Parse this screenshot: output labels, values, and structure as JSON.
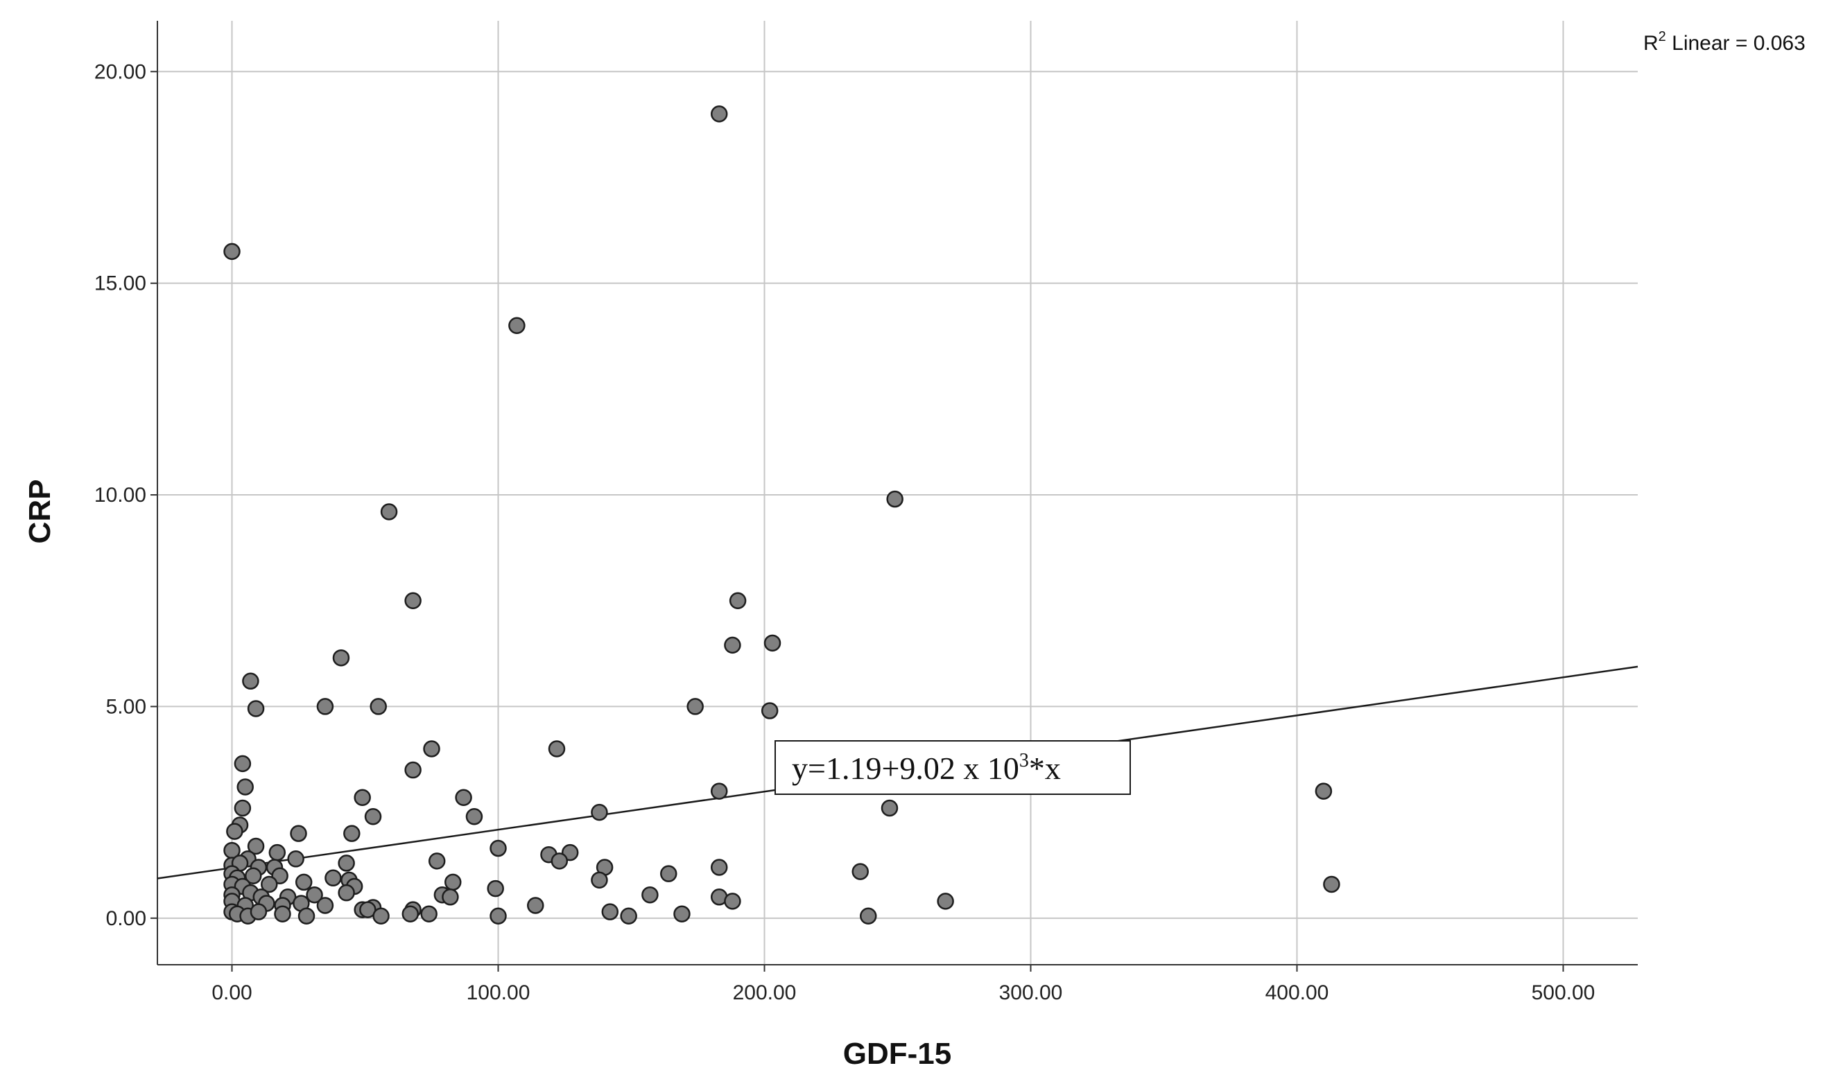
{
  "chart_data": {
    "type": "scatter",
    "title": "",
    "xlabel": "GDF-15",
    "ylabel": "CRP",
    "xlim": [
      -28,
      528
    ],
    "ylim": [
      -1.1,
      21.2
    ],
    "x_ticks": [
      0,
      100,
      200,
      300,
      400,
      500
    ],
    "y_ticks": [
      0,
      5,
      10,
      15,
      20
    ],
    "x_tick_labels": [
      "0.00",
      "100.00",
      "200.00",
      "300.00",
      "400.00",
      "500.00"
    ],
    "y_tick_labels": [
      "0.00",
      "5.00",
      "10.00",
      "15.00",
      "20.00"
    ],
    "grid": true,
    "colors": {
      "point_fill": "#808080",
      "point_stroke": "#1e1e1e",
      "grid": "#c6c6c6",
      "axis": "#333333",
      "fit_line": "#1a1a1a"
    },
    "fit_line": {
      "type": "linear",
      "intercept": 1.19,
      "slope": 0.009,
      "equation_prefix": "y=1.19+9.02 x 10",
      "equation_exponent": "3",
      "equation_suffix": "*x",
      "r2_prefix": "R",
      "r2_exponent": "2",
      "r2_suffix": " Linear = 0.063"
    },
    "series": [
      {
        "points": [
          [
            0,
            15.75
          ],
          [
            183,
            19.0
          ],
          [
            107,
            14.0
          ],
          [
            59,
            9.6
          ],
          [
            249,
            9.9
          ],
          [
            68,
            7.5
          ],
          [
            190,
            7.5
          ],
          [
            188,
            6.45
          ],
          [
            203,
            6.5
          ],
          [
            41,
            6.15
          ],
          [
            7,
            5.6
          ],
          [
            9,
            4.95
          ],
          [
            35,
            5.0
          ],
          [
            55,
            5.0
          ],
          [
            174,
            5.0
          ],
          [
            202,
            4.9
          ],
          [
            75,
            4.0
          ],
          [
            122,
            4.0
          ],
          [
            4,
            3.65
          ],
          [
            5,
            3.1
          ],
          [
            68,
            3.5
          ],
          [
            183,
            3.0
          ],
          [
            410,
            3.0
          ],
          [
            49,
            2.85
          ],
          [
            87,
            2.85
          ],
          [
            4,
            2.6
          ],
          [
            247,
            2.6
          ],
          [
            53,
            2.4
          ],
          [
            91,
            2.4
          ],
          [
            138,
            2.5
          ],
          [
            3,
            2.2
          ],
          [
            1,
            2.05
          ],
          [
            25,
            2.0
          ],
          [
            45,
            2.0
          ],
          [
            9,
            1.7
          ],
          [
            0,
            1.6
          ],
          [
            17,
            1.55
          ],
          [
            100,
            1.65
          ],
          [
            119,
            1.5
          ],
          [
            127,
            1.55
          ],
          [
            6,
            1.4
          ],
          [
            24,
            1.4
          ],
          [
            43,
            1.3
          ],
          [
            77,
            1.35
          ],
          [
            123,
            1.35
          ],
          [
            0,
            1.25
          ],
          [
            3,
            1.3
          ],
          [
            10,
            1.2
          ],
          [
            16,
            1.2
          ],
          [
            140,
            1.2
          ],
          [
            183,
            1.2
          ],
          [
            236,
            1.1
          ],
          [
            413,
            0.8
          ],
          [
            0,
            1.05
          ],
          [
            2,
            0.95
          ],
          [
            8,
            1.0
          ],
          [
            18,
            1.0
          ],
          [
            38,
            0.95
          ],
          [
            44,
            0.9
          ],
          [
            27,
            0.85
          ],
          [
            83,
            0.85
          ],
          [
            138,
            0.9
          ],
          [
            164,
            1.05
          ],
          [
            0,
            0.8
          ],
          [
            4,
            0.75
          ],
          [
            14,
            0.8
          ],
          [
            46,
            0.75
          ],
          [
            99,
            0.7
          ],
          [
            0,
            0.55
          ],
          [
            7,
            0.6
          ],
          [
            11,
            0.5
          ],
          [
            21,
            0.5
          ],
          [
            31,
            0.55
          ],
          [
            43,
            0.6
          ],
          [
            79,
            0.55
          ],
          [
            82,
            0.5
          ],
          [
            157,
            0.55
          ],
          [
            183,
            0.5
          ],
          [
            188,
            0.4
          ],
          [
            0,
            0.4
          ],
          [
            5,
            0.3
          ],
          [
            13,
            0.35
          ],
          [
            19,
            0.3
          ],
          [
            26,
            0.35
          ],
          [
            35,
            0.3
          ],
          [
            49,
            0.2
          ],
          [
            53,
            0.25
          ],
          [
            68,
            0.2
          ],
          [
            114,
            0.3
          ],
          [
            268,
            0.4
          ],
          [
            0,
            0.15
          ],
          [
            2,
            0.1
          ],
          [
            6,
            0.05
          ],
          [
            10,
            0.15
          ],
          [
            19,
            0.1
          ],
          [
            28,
            0.05
          ],
          [
            51,
            0.2
          ],
          [
            56,
            0.05
          ],
          [
            67,
            0.1
          ],
          [
            74,
            0.1
          ],
          [
            100,
            0.05
          ],
          [
            142,
            0.15
          ],
          [
            149,
            0.05
          ],
          [
            169,
            0.1
          ],
          [
            239,
            0.05
          ]
        ]
      }
    ]
  }
}
